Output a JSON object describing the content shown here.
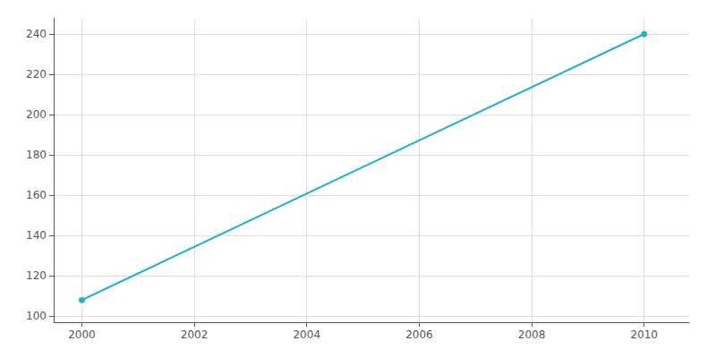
{
  "chart_data": {
    "type": "line",
    "x": [
      2000,
      2010
    ],
    "values": [
      108,
      240
    ],
    "color": "#20B2C8",
    "marker": "circle",
    "xlim": [
      1999.5,
      2010.8
    ],
    "ylim": [
      97,
      248
    ],
    "xticks": [
      2000,
      2002,
      2004,
      2006,
      2008,
      2010
    ],
    "yticks": [
      100,
      120,
      140,
      160,
      180,
      200,
      220,
      240
    ],
    "grid": true
  }
}
